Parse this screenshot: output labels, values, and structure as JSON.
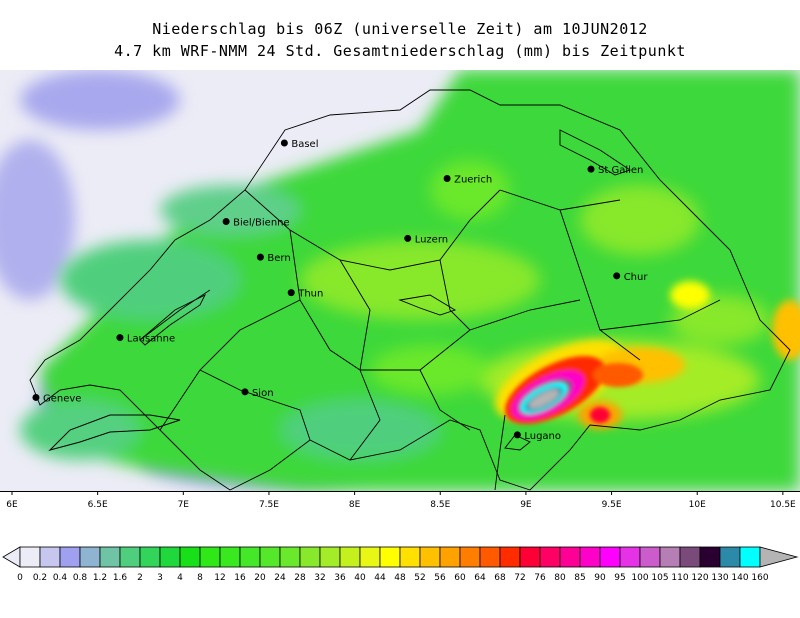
{
  "header": {
    "title_line1": "Niederschlag bis 06Z (universelle Zeit) am 10JUN2012",
    "title_line2": "4.7 km WRF-NMM 24 Std. Gesamtniederschlag (mm) bis Zeitpunkt"
  },
  "map": {
    "lon_range": [
      5.93,
      10.6
    ],
    "lat_range": [
      45.7,
      47.95
    ],
    "lon_ticks": [
      "6E",
      "6.5E",
      "7E",
      "7.5E",
      "8E",
      "8.5E",
      "9E",
      "9.5E",
      "10E",
      "10.5E"
    ],
    "lon_tick_values": [
      6.0,
      6.5,
      7.0,
      7.5,
      8.0,
      8.5,
      9.0,
      9.5,
      10.0,
      10.5
    ],
    "cities": [
      {
        "name": "Basel",
        "lon": 7.59,
        "lat": 47.56
      },
      {
        "name": "Zuerich",
        "lon": 8.54,
        "lat": 47.37
      },
      {
        "name": "St.Gallen",
        "lon": 9.38,
        "lat": 47.42
      },
      {
        "name": "Biel/Bienne",
        "lon": 7.25,
        "lat": 47.14
      },
      {
        "name": "Luzern",
        "lon": 8.31,
        "lat": 47.05
      },
      {
        "name": "Bern",
        "lon": 7.45,
        "lat": 46.95
      },
      {
        "name": "Chur",
        "lon": 9.53,
        "lat": 46.85
      },
      {
        "name": "Thun",
        "lon": 7.63,
        "lat": 46.76
      },
      {
        "name": "Lausanne",
        "lon": 6.63,
        "lat": 46.52
      },
      {
        "name": "Geneve",
        "lon": 6.14,
        "lat": 46.2
      },
      {
        "name": "Sion",
        "lon": 7.36,
        "lat": 46.23
      },
      {
        "name": "Lugano",
        "lon": 8.95,
        "lat": 46.0
      }
    ]
  },
  "colorbar": {
    "labels": [
      "0",
      "0.2",
      "0.4",
      "0.8",
      "1.2",
      "1.6",
      "2",
      "3",
      "4",
      "8",
      "12",
      "16",
      "20",
      "24",
      "28",
      "32",
      "36",
      "40",
      "44",
      "48",
      "52",
      "56",
      "60",
      "64",
      "68",
      "72",
      "76",
      "80",
      "85",
      "90",
      "95",
      "100",
      "105",
      "110",
      "120",
      "130",
      "140",
      "160"
    ],
    "colors": [
      "#ececf6",
      "#c6c6ee",
      "#a0a0f0",
      "#8fb4d2",
      "#6fc4a6",
      "#4fcf7d",
      "#32d45a",
      "#1ed83c",
      "#18e018",
      "#30e818",
      "#3ae820",
      "#44e828",
      "#55e82a",
      "#6ae82c",
      "#88e82c",
      "#a4ec28",
      "#c4f01e",
      "#e8f814",
      "#ffff00",
      "#ffe000",
      "#ffc000",
      "#ffa200",
      "#ff7e00",
      "#ff5a00",
      "#ff2c00",
      "#ff0036",
      "#ff0064",
      "#ff0096",
      "#ff00c8",
      "#ff00ff",
      "#e632e6",
      "#cc5ccc",
      "#b57eb5",
      "#7a4a7a",
      "#2a0030",
      "#2a8aa8",
      "#00ffff",
      "#b4b4b4"
    ]
  }
}
